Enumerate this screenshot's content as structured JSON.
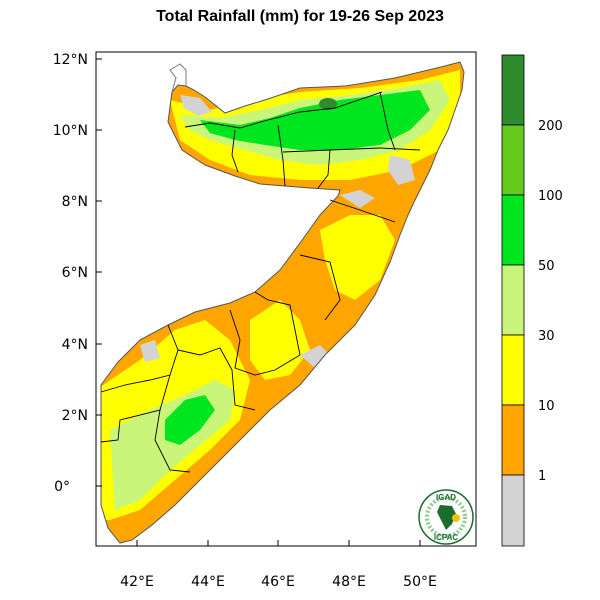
{
  "title": "Total Rainfall (mm) for 19-26 Sep 2023",
  "map": {
    "lon_ticks": [
      "42°E",
      "44°E",
      "46°E",
      "48°E",
      "50°E"
    ],
    "lat_ticks": [
      "12°N",
      "10°N",
      "8°N",
      "6°N",
      "4°N",
      "2°N",
      "0°"
    ],
    "lon_range": [
      41,
      51.5
    ],
    "lat_range": [
      -1.7,
      12.2
    ]
  },
  "colorbar": {
    "labels": [
      "200",
      "100",
      "50",
      "30",
      "10",
      "1"
    ],
    "colors": [
      "#2e8b2e",
      "#66c91e",
      "#00e61e",
      "#c8f57a",
      "#ffff00",
      "#ffa500",
      "#d3d3d3"
    ]
  },
  "logo": {
    "top_text": "IGAD",
    "bottom_text": "ICPAC"
  }
}
